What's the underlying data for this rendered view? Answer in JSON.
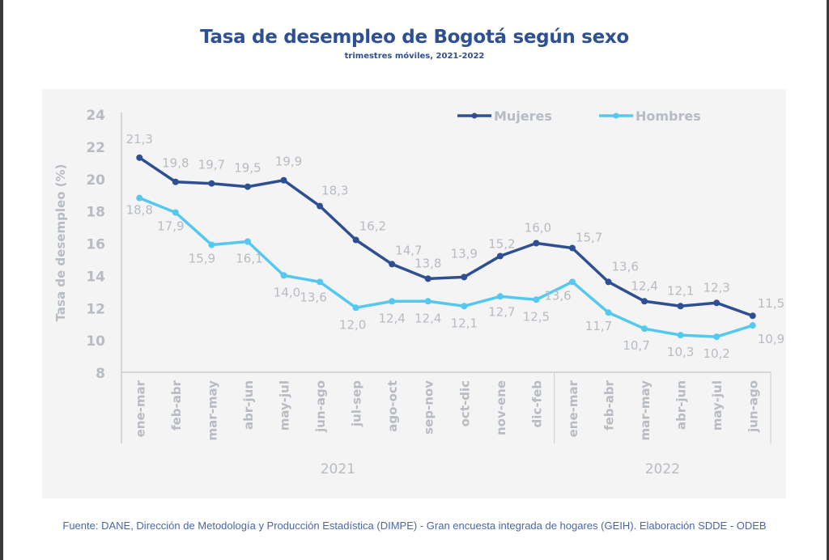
{
  "chart_data": {
    "type": "line",
    "title": "Tasa de desempleo de Bogotá según sexo",
    "subtitle": "trimestres móviles, 2021-2022",
    "ylabel": "Tasa de desempleo (%)",
    "xlabel": "",
    "ylim": [
      8,
      24
    ],
    "yticks": [
      "8",
      "10",
      "12",
      "14",
      "16",
      "18",
      "20",
      "22",
      "24"
    ],
    "ytick_values": [
      8,
      10,
      12,
      14,
      16,
      18,
      20,
      22,
      24
    ],
    "grid": false,
    "legend_position": "top-right",
    "categories": [
      "ene-mar",
      "feb-abr",
      "mar-may",
      "abr-jun",
      "may-jul",
      "jun-ago",
      "jul-sep",
      "ago-oct",
      "sep-nov",
      "oct-dic",
      "nov-ene",
      "dic-feb",
      "ene-mar",
      "feb-abr",
      "mar-may",
      "abr-jun",
      "may-jul",
      "jun-ago"
    ],
    "year_groups": [
      {
        "label": "2021",
        "count": 12
      },
      {
        "label": "2022",
        "count": 6
      }
    ],
    "series": [
      {
        "name": "Mujeres",
        "color": "#2e4f91",
        "values": [
          21.3,
          19.8,
          19.7,
          19.5,
          19.9,
          18.3,
          16.2,
          14.7,
          13.8,
          13.9,
          15.2,
          16.0,
          15.7,
          13.6,
          12.4,
          12.1,
          12.3,
          11.5
        ],
        "labels": [
          "21,3",
          "19,8",
          "19,7",
          "19,5",
          "19,9",
          "18,3",
          "16,2",
          "14,7",
          "13,8",
          "13,9",
          "15,2",
          "16,0",
          "15,7",
          "13,6",
          "12,4",
          "12,1",
          "12,3",
          "11,5"
        ]
      },
      {
        "name": "Hombres",
        "color": "#54c8ef",
        "values": [
          18.8,
          17.9,
          15.9,
          16.1,
          14.0,
          13.6,
          12.0,
          12.4,
          12.4,
          12.1,
          12.7,
          12.5,
          13.6,
          11.7,
          10.7,
          10.3,
          10.2,
          10.9
        ],
        "labels": [
          "18,8",
          "17,9",
          "15,9",
          "16,1",
          "14,0",
          "13,6",
          "12,0",
          "12,4",
          "12,4",
          "12,1",
          "12,7",
          "12,5",
          "13,6",
          "11,7",
          "10,7",
          "10,3",
          "10,2",
          "10,9"
        ]
      }
    ]
  },
  "source_note": "Fuente: DANE, Dirección de Metodología y Producción Estadística (DIMPE) - Gran encuesta integrada de hogares (GEIH). Elaboración SDDE - ODEB",
  "colors": {
    "title": "#2e4f91",
    "axis_text": "#b7bbc2",
    "panel_bg": "#f4f4f5",
    "source_text": "#4a66a8"
  }
}
